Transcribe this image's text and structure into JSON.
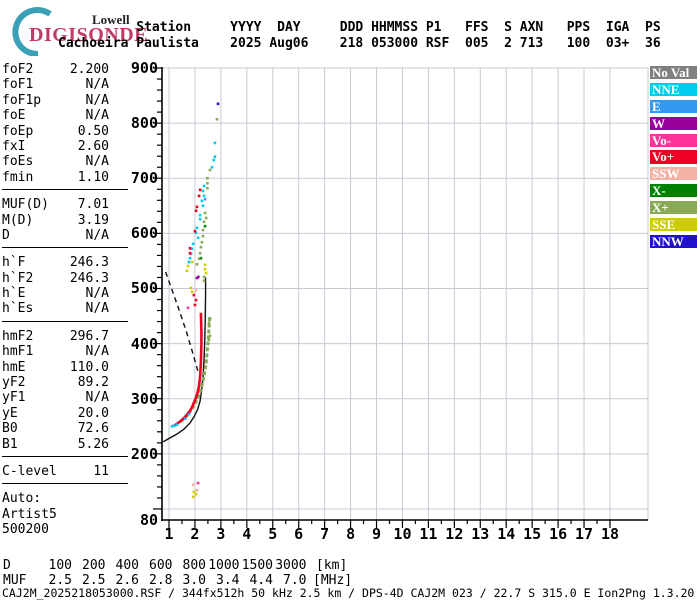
{
  "logo": {
    "top": "Lowell",
    "name": "DIGISONDE"
  },
  "header": {
    "station_label": "Station",
    "station_name": "Cachoeira Paulista",
    "line1": "          Station     YYYY  DAY     DDD HHMMSS P1   FFS  S AXN   PPS  IGA  PS",
    "line2": "Cachoeira Paulista    2025 Aug06    218 053000 RSF  005  2 713   100  03+  36"
  },
  "left_panel": {
    "sections": [
      [
        {
          "l": "foF2",
          "v": "2.200"
        },
        {
          "l": "foF1",
          "v": "N/A"
        },
        {
          "l": "foF1p",
          "v": "N/A"
        },
        {
          "l": "foE",
          "v": "N/A"
        },
        {
          "l": "foEp",
          "v": "0.50"
        },
        {
          "l": "fxI",
          "v": "2.60"
        },
        {
          "l": "foEs",
          "v": "N/A"
        },
        {
          "l": "fmin",
          "v": "1.10"
        }
      ],
      [
        {
          "l": "MUF(D)",
          "v": "7.01"
        },
        {
          "l": "M(D)",
          "v": "3.19"
        },
        {
          "l": "D",
          "v": "N/A"
        }
      ],
      [
        {
          "l": "h`F",
          "v": "246.3"
        },
        {
          "l": "h`F2",
          "v": "246.3"
        },
        {
          "l": "h`E",
          "v": "N/A"
        },
        {
          "l": "h`Es",
          "v": "N/A"
        }
      ],
      [
        {
          "l": "hmF2",
          "v": "296.7"
        },
        {
          "l": "hmF1",
          "v": "N/A"
        },
        {
          "l": "hmE",
          "v": "110.0"
        },
        {
          "l": "yF2",
          "v": "89.2"
        },
        {
          "l": "yF1",
          "v": "N/A"
        },
        {
          "l": "yE",
          "v": "20.0"
        },
        {
          "l": "B0",
          "v": "72.6"
        },
        {
          "l": "B1",
          "v": "5.26"
        }
      ],
      [
        {
          "l": "C-level",
          "v": "11"
        }
      ]
    ],
    "footer_rows": [
      "Auto:",
      "Artist5",
      "500200"
    ]
  },
  "colors": {
    "noval": "#808080",
    "NNE": "#00CCEE",
    "E": "#3399EE",
    "W": "#990099",
    "Vo-": "#FF3399",
    "Vo+": "#EE0022",
    "SSW": "#F4B2A4",
    "X-": "#008000",
    "X+": "#88AA55",
    "SSE": "#CCCC00",
    "NNW": "#2211CC",
    "grid": "#c9c9d4",
    "axis": "#000000"
  },
  "legend": [
    {
      "label": "No Val",
      "key": "noval"
    },
    {
      "label": "NNE",
      "key": "NNE"
    },
    {
      "label": "E",
      "key": "E"
    },
    {
      "label": "W",
      "key": "W"
    },
    {
      "label": "Vo-",
      "key": "Vo-"
    },
    {
      "label": "Vo+",
      "key": "Vo+"
    },
    {
      "label": "SSW",
      "key": "SSW"
    },
    {
      "label": "X-",
      "key": "X-"
    },
    {
      "label": "X+",
      "key": "X+"
    },
    {
      "label": "SSE",
      "key": "SSE"
    },
    {
      "label": "NNW",
      "key": "NNW"
    }
  ],
  "chart_data": {
    "type": "scatter",
    "title": "Digisonde ionogram, Cachoeira Paulista, 2025 Aug06 218 053000",
    "xlim": [
      1,
      18
    ],
    "ylim": [
      80,
      900
    ],
    "x_unit": "MHz",
    "y_unit": "km",
    "x_ticks": [
      1,
      2,
      3,
      4,
      5,
      6,
      7,
      8,
      9,
      10,
      11,
      12,
      13,
      14,
      15,
      16,
      17,
      18
    ],
    "y_ticks": [
      900,
      800,
      700,
      600,
      500,
      400,
      300,
      200,
      80
    ],
    "grid": true,
    "legend_position": "right",
    "o_trace": {
      "name": "O-mode trace (Vo+)",
      "color_key": "Vo+",
      "points": [
        [
          1.12,
          250
        ],
        [
          1.23,
          252
        ],
        [
          1.35,
          256
        ],
        [
          1.46,
          260
        ],
        [
          1.58,
          265
        ],
        [
          1.69,
          271
        ],
        [
          1.81,
          278
        ],
        [
          1.89,
          285
        ],
        [
          1.96,
          293
        ],
        [
          2.04,
          302
        ],
        [
          2.1,
          311
        ],
        [
          2.15,
          322
        ],
        [
          2.19,
          335
        ],
        [
          2.21,
          349
        ],
        [
          2.23,
          366
        ],
        [
          2.24,
          384
        ],
        [
          2.25,
          402
        ],
        [
          2.25,
          420
        ],
        [
          2.24,
          438
        ],
        [
          2.23,
          456
        ]
      ]
    },
    "x_trace": {
      "name": "X-mode trace (X+)",
      "color_key": "X+",
      "points": [
        [
          1.42,
          258
        ],
        [
          1.54,
          262
        ],
        [
          1.66,
          267
        ],
        [
          1.77,
          274
        ],
        [
          1.89,
          282
        ],
        [
          2.0,
          291
        ],
        [
          2.12,
          302
        ],
        [
          2.21,
          314
        ],
        [
          2.3,
          329
        ],
        [
          2.37,
          346
        ],
        [
          2.43,
          364
        ],
        [
          2.47,
          384
        ],
        [
          2.51,
          405
        ],
        [
          2.54,
          427
        ],
        [
          2.57,
          449
        ]
      ]
    },
    "profile_line": {
      "name": "true-height profile",
      "style": "solid",
      "points": [
        [
          0.78,
          222
        ],
        [
          1.04,
          229
        ],
        [
          1.31,
          236
        ],
        [
          1.58,
          245
        ],
        [
          1.81,
          256
        ],
        [
          1.96,
          267
        ],
        [
          2.1,
          280
        ],
        [
          2.2,
          296
        ],
        [
          2.26,
          316
        ],
        [
          2.31,
          339
        ],
        [
          2.35,
          370
        ],
        [
          2.38,
          407
        ],
        [
          2.4,
          452
        ],
        [
          2.41,
          489
        ],
        [
          2.41,
          520
        ]
      ]
    },
    "transmission_curve": {
      "name": "MUF transmission curve",
      "style": "dashed",
      "points": [
        [
          0.87,
          530
        ],
        [
          1.12,
          497
        ],
        [
          1.39,
          461
        ],
        [
          1.66,
          423
        ],
        [
          1.89,
          387
        ],
        [
          2.12,
          349
        ]
      ]
    },
    "spread_points": [
      [
        "NNW",
        2.89,
        835
      ],
      [
        "X+",
        2.85,
        807
      ],
      [
        "NNE",
        2.77,
        764
      ],
      [
        "NNE",
        2.77,
        739
      ],
      [
        "NNE",
        2.73,
        733
      ],
      [
        "NNE",
        2.66,
        720
      ],
      [
        "X+",
        2.58,
        715
      ],
      [
        "X+",
        2.48,
        700
      ],
      [
        "X+",
        2.48,
        691
      ],
      [
        "X+",
        2.48,
        682
      ],
      [
        "NNE",
        2.35,
        686
      ],
      [
        "NNE",
        2.31,
        677
      ],
      [
        "NNE",
        2.35,
        668
      ],
      [
        "NNE",
        2.27,
        659
      ],
      [
        "NNE",
        2.31,
        650
      ],
      [
        "Vo+",
        2.2,
        679
      ],
      [
        "Vo+",
        2.16,
        668
      ],
      [
        "E",
        2.39,
        662
      ],
      [
        "NNE",
        2.2,
        633
      ],
      [
        "NNE",
        2.2,
        626
      ],
      [
        "Vo+",
        2.08,
        648
      ],
      [
        "Vo+",
        2.04,
        641
      ],
      [
        "X+",
        2.39,
        637
      ],
      [
        "X+",
        2.43,
        628
      ],
      [
        "X+",
        2.35,
        621
      ],
      [
        "X-",
        2.39,
        613
      ],
      [
        "NNE",
        2.08,
        610
      ],
      [
        "NNE",
        2.04,
        601
      ],
      [
        "NNE",
        2.12,
        592
      ],
      [
        "X+",
        2.31,
        606
      ],
      [
        "X+",
        2.31,
        595
      ],
      [
        "X+",
        2.27,
        584
      ],
      [
        "Vo+",
        2.0,
        604
      ],
      [
        "NNE",
        1.93,
        581
      ],
      [
        "NNE",
        1.89,
        572
      ],
      [
        "NNE",
        1.85,
        563
      ],
      [
        "Vo+",
        1.81,
        573
      ],
      [
        "Vo+",
        1.81,
        564
      ],
      [
        "X+",
        2.23,
        575
      ],
      [
        "X+",
        2.2,
        564
      ],
      [
        "X-",
        2.23,
        555
      ],
      [
        "NNE",
        1.81,
        555
      ],
      [
        "NNE",
        1.77,
        548
      ],
      [
        "X+",
        2.16,
        554
      ],
      [
        "X+",
        2.08,
        544
      ],
      [
        "SSE",
        2.39,
        543
      ],
      [
        "SSE",
        2.39,
        535
      ],
      [
        "SSE",
        2.43,
        528
      ],
      [
        "SSE",
        1.73,
        541
      ],
      [
        "SSE",
        1.69,
        532
      ],
      [
        "SSE",
        1.89,
        548
      ],
      [
        "W",
        2.08,
        519
      ],
      [
        "W",
        2.13,
        521
      ],
      [
        "SSE",
        1.85,
        501
      ],
      [
        "SSE",
        1.89,
        494
      ],
      [
        "SSW",
        2.04,
        497
      ],
      [
        "Vo+",
        1.96,
        488
      ],
      [
        "Vo+",
        2.04,
        479
      ],
      [
        "Vo+",
        2.0,
        470
      ],
      [
        "Vo-",
        1.73,
        465
      ],
      [
        "X+",
        2.35,
        521
      ],
      [
        "X+",
        2.35,
        514
      ],
      [
        "X+",
        2.58,
        446
      ],
      [
        "X+",
        2.54,
        437
      ],
      [
        "X+",
        2.58,
        414
      ],
      [
        "X+",
        2.54,
        407
      ],
      [
        "NNE",
        1.12,
        250
      ],
      [
        "NNE",
        1.2,
        251
      ],
      [
        "NNE",
        1.31,
        253
      ],
      [
        "E",
        1.62,
        264
      ],
      [
        "E",
        1.77,
        272
      ],
      [
        "SSW",
        1.93,
        144
      ],
      [
        "SSW",
        2.08,
        134
      ],
      [
        "SSE",
        1.96,
        131
      ],
      [
        "SSE",
        1.93,
        122
      ],
      [
        "SSE",
        2.04,
        127
      ],
      [
        "Vo-",
        2.12,
        147
      ]
    ],
    "muf_table": {
      "row_d_label": "D",
      "row_muf_label": "MUF",
      "distances": [
        "100",
        "200",
        "400",
        "600",
        "800",
        "1000",
        "1500",
        "3000"
      ],
      "d_unit": "[km]",
      "muf_values": [
        "2.5",
        "2.5",
        "2.6",
        "2.8",
        "3.0",
        "3.4",
        "4.4",
        "7.0"
      ],
      "muf_unit": "[MHz]"
    }
  },
  "footer": {
    "status_line": "CAJ2M_2025218053000.RSF / 344fx512h 50 kHz 2.5 km / DPS-4D CAJ2M 023 / 22.7 S 315.0 E Ion2Png 1.3.20"
  }
}
